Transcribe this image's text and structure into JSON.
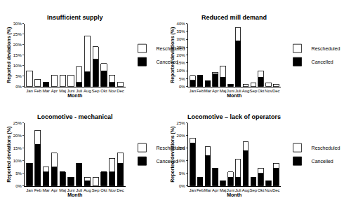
{
  "chart_data": [
    {
      "type": "bar",
      "stacked": true,
      "legend": "right",
      "grid": false,
      "title": "Insufficient supply",
      "x_label": "Month",
      "y_label": "Reported deviations (%)",
      "categories": [
        "Jan",
        "Feb",
        "Mar",
        "Apr",
        "Maj",
        "Juni",
        "Juli",
        "Aug",
        "Sep",
        "Okt",
        "Nov",
        "Dec"
      ],
      "series": [
        {
          "name": "Cancelled",
          "color": "#000000",
          "values": [
            0,
            0,
            2,
            0,
            0,
            0,
            2,
            7,
            13,
            7.5,
            2,
            0
          ]
        },
        {
          "name": "Rescheduled",
          "color": "#ffffff",
          "values": [
            7.5,
            3.5,
            0,
            5.5,
            5.5,
            5.5,
            7.5,
            17,
            6,
            3.5,
            3.5,
            2
          ]
        }
      ],
      "ylim": [
        0,
        30
      ],
      "yticks": [
        {
          "value": 0,
          "label": "0%"
        },
        {
          "value": 5,
          "label": "5%"
        },
        {
          "value": 10,
          "label": "10%"
        },
        {
          "value": 15,
          "label": "15%"
        },
        {
          "value": 20,
          "label": "20%"
        },
        {
          "value": 25,
          "label": "25%"
        },
        {
          "value": 30,
          "label": "30%"
        }
      ]
    },
    {
      "type": "bar",
      "stacked": true,
      "legend": "right",
      "grid": false,
      "title": "Reduced mill demand",
      "x_label": "Month",
      "y_label": "Reported deviations (%)",
      "categories": [
        "Jan",
        "Feb",
        "Mar",
        "Apr",
        "Maj",
        "Juni",
        "Juli",
        "Aug",
        "Sep",
        "Okt",
        "Nov",
        "Dec"
      ],
      "series": [
        {
          "name": "Cancelled",
          "color": "#000000",
          "values": [
            4,
            7,
            3.5,
            8,
            6,
            1.5,
            29,
            0,
            0,
            6,
            0,
            0
          ]
        },
        {
          "name": "Rescheduled",
          "color": "#ffffff",
          "values": [
            3,
            0,
            0,
            1,
            7,
            0,
            8.5,
            1.5,
            2.5,
            4,
            2.5,
            1.5
          ]
        }
      ],
      "ylim": [
        0,
        40
      ],
      "yticks": [
        {
          "value": 0,
          "label": "0%"
        },
        {
          "value": 5,
          "label": "5%"
        },
        {
          "value": 10,
          "label": "10%"
        },
        {
          "value": 15,
          "label": "15%"
        },
        {
          "value": 20,
          "label": "20%"
        },
        {
          "value": 25,
          "label": "25%"
        },
        {
          "value": 30,
          "label": "30%"
        },
        {
          "value": 35,
          "label": "35%"
        },
        {
          "value": 40,
          "label": "40%"
        }
      ]
    },
    {
      "type": "bar",
      "stacked": true,
      "legend": "right",
      "grid": false,
      "title": "Locomotive - mechanical",
      "x_label": "Month",
      "y_label": "Reported deviations (%)",
      "categories": [
        "Jan",
        "Feb",
        "Mar",
        "Apr",
        "Maj",
        "Juni",
        "Juli",
        "Aug",
        "Sep",
        "Okt",
        "Nov",
        "Dec"
      ],
      "series": [
        {
          "name": "Cancelled",
          "color": "#000000",
          "values": [
            9,
            16.5,
            5.5,
            7.5,
            5.5,
            3.5,
            9,
            2,
            0,
            5.5,
            5.5,
            9
          ]
        },
        {
          "name": "Rescheduled",
          "color": "#ffffff",
          "values": [
            0,
            5.5,
            2,
            5.5,
            0,
            0,
            0,
            1.5,
            3.5,
            0,
            5.5,
            4
          ]
        }
      ],
      "ylim": [
        0,
        25
      ],
      "yticks": [
        {
          "value": 0,
          "label": "0%"
        },
        {
          "value": 5,
          "label": "5%"
        },
        {
          "value": 10,
          "label": "10%"
        },
        {
          "value": 15,
          "label": "15%"
        },
        {
          "value": 20,
          "label": "20%"
        },
        {
          "value": 25,
          "label": "25%"
        }
      ]
    },
    {
      "type": "bar",
      "stacked": true,
      "legend": "right",
      "grid": false,
      "title": "Locomotive – lack of operators",
      "x_label": "Month",
      "y_label": "Reported deviations (%)",
      "categories": [
        "Jan",
        "Feb",
        "Mar",
        "Apr",
        "Maj",
        "Juni",
        "Juli",
        "Aug",
        "Sep",
        "Okt",
        "Nov",
        "Dec"
      ],
      "series": [
        {
          "name": "Cancelled",
          "color": "#000000",
          "values": [
            17,
            3.5,
            12,
            7,
            2,
            3.5,
            3.5,
            14,
            3.5,
            5,
            2,
            7
          ]
        },
        {
          "name": "Rescheduled",
          "color": "#ffffff",
          "values": [
            2,
            0,
            3.5,
            0,
            0,
            2,
            7,
            3.5,
            0,
            2,
            0,
            2
          ]
        }
      ],
      "ylim": [
        0,
        25
      ],
      "yticks": [
        {
          "value": 0,
          "label": "0%"
        },
        {
          "value": 5,
          "label": "5%"
        },
        {
          "value": 10,
          "label": "10%"
        },
        {
          "value": 15,
          "label": "15%"
        },
        {
          "value": 20,
          "label": "20%"
        },
        {
          "value": 25,
          "label": "25%"
        }
      ]
    }
  ]
}
